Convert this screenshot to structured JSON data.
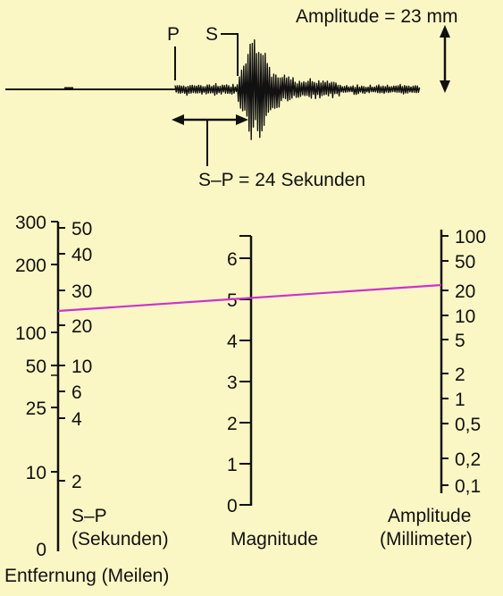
{
  "seismogram": {
    "p_label": "P",
    "s_label": "S",
    "amplitude_label": "Amplitude = 23 mm",
    "sp_label": "S–P = 24 Sekunden"
  },
  "nomogram": {
    "distance_scale": {
      "ticks": [
        "300",
        "200",
        "100",
        "50",
        "25",
        "10",
        "0"
      ],
      "title": "Entfernung (Meilen)"
    },
    "sp_scale": {
      "ticks": [
        "50",
        "40",
        "30",
        "20",
        "10",
        "6",
        "4",
        "2"
      ],
      "title_line1": "S–P",
      "title_line2": "(Sekunden)"
    },
    "magnitude_scale": {
      "ticks": [
        "6",
        "5",
        "4",
        "3",
        "2",
        "1",
        "0"
      ],
      "title": "Magnitude"
    },
    "amplitude_scale": {
      "ticks": [
        "100",
        "50",
        "20",
        "10",
        "5",
        "2",
        "1",
        "0,5",
        "0,2",
        "0,1"
      ],
      "title_line1": "Amplitude",
      "title_line2": "(Millimeter)"
    },
    "reading": {
      "sp_seconds": 24,
      "amplitude_mm": 23,
      "magnitude": 5
    },
    "colors": {
      "reading_line": "#cc33cc",
      "background": "#fbf7c4",
      "ink": "#111111"
    }
  }
}
